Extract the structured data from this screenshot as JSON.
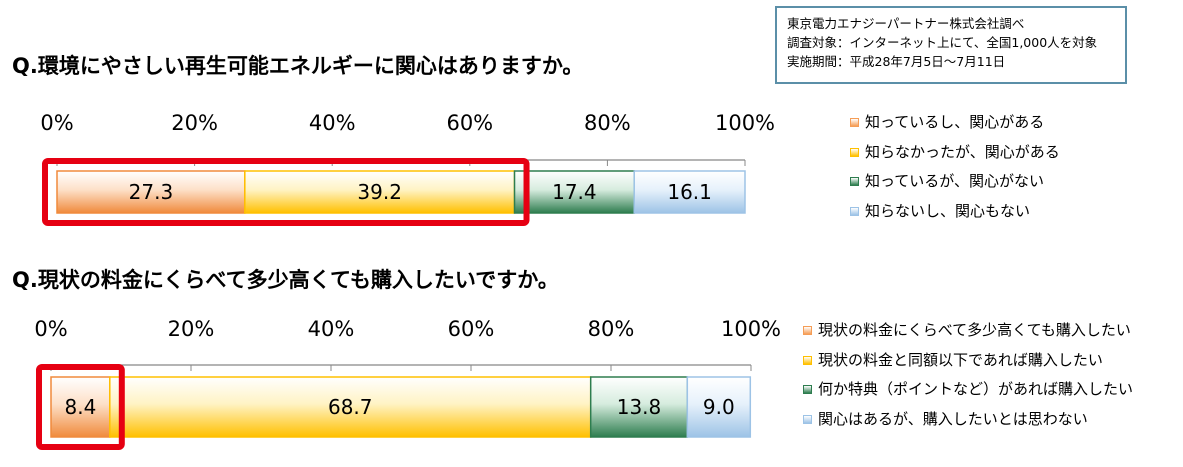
{
  "source": {
    "line1": "東京電力エナジーパートナー株式会社調べ",
    "line2": "調査対象：インターネット上にて、全国1,000人を対象",
    "line3": "実施期間：平成28年7月5日～7月11日"
  },
  "chart_data": [
    {
      "type": "bar",
      "orientation": "horizontal-stacked",
      "title": "Q.環境にやさしい再生可能エネルギーに関心はありますか。",
      "xlim": [
        0,
        100
      ],
      "tick_labels": [
        "0%",
        "20%",
        "40%",
        "60%",
        "80%",
        "100%"
      ],
      "legend_position": "right",
      "series": [
        {
          "name": "知っているし、関心がある",
          "values": [
            27.3
          ],
          "color": "#f59d56"
        },
        {
          "name": "知らなかったが、関心がある",
          "values": [
            39.2
          ],
          "color": "#ffc000"
        },
        {
          "name": "知っているが、関心がない",
          "values": [
            17.4
          ],
          "color": "#2e7d4f"
        },
        {
          "name": "知らないし、関心もない",
          "values": [
            16.1
          ],
          "color": "#9dc3e6"
        }
      ],
      "highlight": {
        "label": "red frame",
        "covers": [
          0,
          1
        ],
        "color": "#e60012"
      }
    },
    {
      "type": "bar",
      "orientation": "horizontal-stacked",
      "title": "Q.現状の料金にくらべて多少高くても購入したいですか。",
      "xlim": [
        0,
        100
      ],
      "tick_labels": [
        "0%",
        "20%",
        "40%",
        "60%",
        "80%",
        "100%"
      ],
      "legend_position": "right",
      "series": [
        {
          "name": "現状の料金にくらべて多少高くても購入したい",
          "values": [
            8.4
          ],
          "color": "#f59d56"
        },
        {
          "name": "現状の料金と同額以下であれば購入したい",
          "values": [
            68.7
          ],
          "color": "#ffc000"
        },
        {
          "name": "何か特典（ポイントなど）があれば購入したい",
          "values": [
            13.8
          ],
          "color": "#2e7d4f"
        },
        {
          "name": "関心はあるが、購入したいとは思わない",
          "values": [
            9.0
          ],
          "color": "#9dc3e6"
        }
      ],
      "highlight": {
        "label": "red frame",
        "covers": [
          0
        ],
        "color": "#e60012"
      }
    }
  ]
}
